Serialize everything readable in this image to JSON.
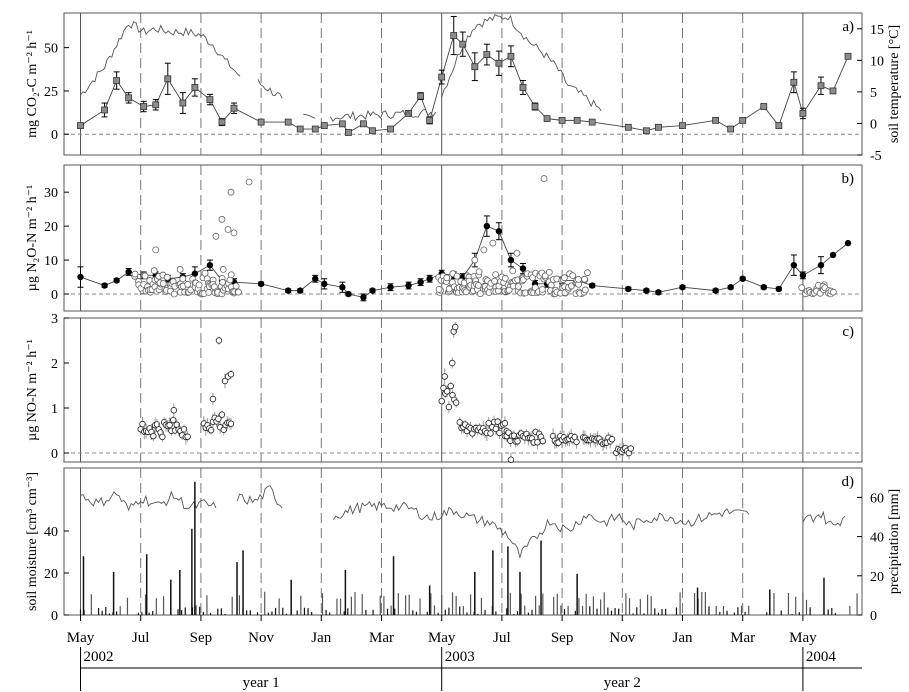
{
  "colors": {
    "axis": "#000000",
    "series_line": "#555555",
    "square_marker": "#8c8c8c",
    "open_marker": "#ffffff",
    "filled_marker": "#000000",
    "grid_dash": "#777777"
  },
  "time_axis": {
    "month_labels": [
      "May",
      "Jul",
      "Sep",
      "Nov",
      "Jan",
      "Mar",
      "May",
      "Jul",
      "Sep",
      "Nov",
      "Jan",
      "Mar",
      "May"
    ],
    "year_labels": [
      "2002",
      "2003",
      "2004"
    ],
    "period_labels": [
      "year 1",
      "year 2"
    ]
  },
  "chart_data": [
    {
      "panel_label": "a)",
      "type": "line",
      "ylabel": "mg CO₂-C m⁻² h⁻¹",
      "ylabel_right": "soil temperature [°C]",
      "ylim": [
        -12,
        70
      ],
      "yticks": [
        0,
        25,
        50
      ],
      "ylim_right": [
        -5,
        17.5
      ],
      "yticks_right": [
        -5,
        0,
        5,
        10,
        15
      ],
      "series": [
        {
          "marker": "square",
          "x": [
            0,
            0.8,
            1.2,
            1.6,
            2.1,
            2.5,
            2.9,
            3.4,
            3.8,
            4.3,
            4.7,
            5.1,
            6,
            6.9,
            7.3,
            7.8,
            8.1,
            8.7,
            8.9,
            9.4,
            9.7,
            10.3,
            10.9,
            11.3,
            11.6,
            12,
            12.4,
            12.7,
            13.1,
            13.5,
            13.9,
            14.3,
            14.7,
            15.1,
            15.5,
            16,
            16.5,
            17,
            18.2,
            18.8,
            19.2,
            20,
            21.1,
            21.6,
            22,
            22.7,
            23.2,
            23.7,
            24,
            24.6,
            25,
            25.5
          ],
          "y": [
            5,
            14,
            31,
            21,
            16,
            17,
            32,
            18,
            27,
            20,
            7,
            15,
            7,
            7,
            3,
            3,
            5,
            6,
            1,
            6,
            2,
            3,
            12,
            22,
            8,
            33,
            57,
            52,
            39,
            46,
            41,
            45,
            27,
            16,
            9,
            8,
            8,
            7,
            4,
            2,
            4,
            5,
            8,
            3,
            8,
            16,
            5,
            30,
            12,
            28,
            25,
            45
          ],
          "err": [
            0,
            4,
            5,
            3,
            3,
            3,
            9,
            6,
            5,
            3,
            2,
            3,
            0,
            0,
            0,
            0,
            0,
            0,
            0,
            0,
            0,
            0,
            0,
            2,
            2,
            4,
            11,
            7,
            8,
            6,
            7,
            6,
            4,
            2,
            0,
            0,
            0,
            0,
            0,
            0,
            0,
            0,
            0,
            0,
            0,
            0,
            0,
            6,
            3,
            5,
            0,
            0
          ]
        },
        {
          "name_hidden": "soil temperature",
          "axis": "right",
          "segments": [
            {
              "x": [
                0,
                0.8,
                1.6,
                2.1,
                2.5,
                3,
                3.5,
                4,
                4.4,
                4.8,
                5.3
              ],
              "y": [
                4.5,
                9,
                16,
                14.5,
                15,
                14.5,
                14.5,
                14,
                12.5,
                10,
                7.5
              ]
            },
            {
              "x": [
                5.9,
                6.7
              ],
              "y": [
                6.5,
                4
              ]
            },
            {
              "x": [
                7.4,
                7.8
              ],
              "y": [
                0.8,
                0.8
              ]
            },
            {
              "x": [
                8.3,
                11.8
              ],
              "y": [
                1,
                1.8
              ]
            },
            {
              "x": [
                12,
                12.7,
                13.1,
                13.6,
                14.2,
                14.9,
                15.4,
                15.8,
                16.2,
                16.8,
                17.3
              ],
              "y": [
                4.5,
                12.5,
                15.5,
                16.5,
                17,
                13,
                11,
                9,
                6,
                4,
                2
              ]
            }
          ]
        }
      ]
    },
    {
      "panel_label": "b)",
      "type": "scatter",
      "ylabel": "µg N₂O-N m⁻² h⁻¹",
      "ylim": [
        -5,
        38
      ],
      "yticks": [
        0,
        10,
        20,
        30
      ],
      "series": [
        {
          "marker": "filled-circle",
          "x": [
            0,
            0.8,
            1.2,
            1.6,
            2.1,
            2.5,
            2.9,
            3.4,
            3.8,
            4.3,
            4.7,
            5.1,
            6,
            6.9,
            7.3,
            7.8,
            8.1,
            8.7,
            8.9,
            9.4,
            9.7,
            10.3,
            10.9,
            11.3,
            11.6,
            12,
            12.4,
            12.7,
            13.1,
            13.5,
            13.9,
            14.3,
            14.7,
            15.1,
            15.5,
            16,
            16.5,
            17,
            18.2,
            18.8,
            19.2,
            20,
            21.1,
            21.6,
            22,
            22.7,
            23.2,
            23.7,
            24,
            24.6,
            25,
            25.5
          ],
          "y": [
            5,
            2.5,
            4,
            6.5,
            5.5,
            5.5,
            4.5,
            5,
            6,
            8.5,
            4,
            3.5,
            3,
            1,
            1,
            4.5,
            3,
            2,
            0,
            -1,
            1,
            2,
            2.5,
            3.5,
            4.5,
            6,
            5.5,
            5,
            10,
            20,
            18.5,
            10,
            7.5,
            3,
            3,
            4,
            4,
            2.5,
            1.5,
            1,
            0.5,
            2,
            1,
            2,
            4.5,
            2,
            1.5,
            8.5,
            5.5,
            8.5,
            11.5,
            15
          ],
          "err": [
            3,
            0.5,
            0.5,
            1,
            1,
            1,
            1,
            1,
            2,
            1.5,
            1,
            1,
            0.5,
            0.5,
            0.5,
            1,
            1.5,
            1.5,
            0.5,
            1,
            0.5,
            1,
            1,
            1,
            1,
            1,
            1,
            1,
            2,
            3,
            2.5,
            2,
            1.5,
            1,
            1,
            1,
            1,
            0.5,
            0.5,
            0.5,
            0.5,
            0.5,
            0.5,
            0.5,
            0.5,
            0.5,
            0.5,
            3,
            1,
            2.5,
            0,
            0
          ]
        },
        {
          "marker": "open-circle",
          "clusters": [
            {
              "x_start": 1.8,
              "x_end": 5.3,
              "y_min": 0,
              "y_max": 8,
              "outliers": [
                [
                  2.5,
                  13
                ],
                [
                  4.5,
                  17
                ],
                [
                  4.7,
                  22
                ],
                [
                  4.9,
                  19
                ],
                [
                  5.0,
                  30
                ],
                [
                  5.1,
                  18
                ],
                [
                  5.6,
                  33
                ]
              ]
            },
            {
              "x_start": 11.9,
              "x_end": 16.8,
              "y_min": 0,
              "y_max": 8,
              "outliers": [
                [
                  13.1,
                  10
                ],
                [
                  13.4,
                  13
                ],
                [
                  13.7,
                  15
                ],
                [
                  14.5,
                  12
                ],
                [
                  15.4,
                  34
                ]
              ]
            },
            {
              "x_start": 24.0,
              "x_end": 25.0,
              "y_min": 0,
              "y_max": 3,
              "outliers": []
            }
          ]
        }
      ]
    },
    {
      "panel_label": "c)",
      "type": "scatter",
      "ylabel": "µg NO-N m⁻² h⁻¹",
      "ylim": [
        -0.2,
        3
      ],
      "yticks": [
        0,
        1,
        2,
        3
      ],
      "series": [
        {
          "marker": "open-circle",
          "segments": [
            {
              "x_start": 2.0,
              "x_end": 3.6,
              "y_base": 0.55,
              "y_amp": 0.2,
              "peaks": [
                [
                  3.1,
                  0.95
                ]
              ]
            },
            {
              "x_start": 4.1,
              "x_end": 5.0,
              "y_base": 0.7,
              "y_amp": 0.25,
              "peaks": [
                [
                  4.4,
                  1.2
                ],
                [
                  4.8,
                  1.6
                ],
                [
                  4.9,
                  1.7
                ],
                [
                  5.0,
                  1.75
                ],
                [
                  4.6,
                  2.5
                ]
              ]
            },
            {
              "x_start": 12.0,
              "x_end": 12.5,
              "y_base": 1.2,
              "y_amp": 0.3,
              "peaks": [
                [
                  12.35,
                  2.0
                ],
                [
                  12.4,
                  2.7
                ],
                [
                  12.45,
                  2.8
                ],
                [
                  12.1,
                  1.7
                ]
              ]
            },
            {
              "x_start": 12.6,
              "x_end": 14.2,
              "y_base": 0.55,
              "y_amp": 0.15,
              "peaks": []
            },
            {
              "x_start": 14.1,
              "x_end": 15.4,
              "y_base": 0.35,
              "y_amp": 0.12,
              "peaks": [
                [
                  14.3,
                  -0.15
                ]
              ]
            },
            {
              "x_start": 15.7,
              "x_end": 16.5,
              "y_base": 0.3,
              "y_amp": 0.08,
              "peaks": []
            },
            {
              "x_start": 16.7,
              "x_end": 17.7,
              "y_base": 0.28,
              "y_amp": 0.08,
              "peaks": []
            },
            {
              "x_start": 17.8,
              "x_end": 18.3,
              "y_base": 0.05,
              "y_amp": 0.06,
              "peaks": []
            }
          ]
        }
      ]
    },
    {
      "panel_label": "d)",
      "type": "line",
      "ylabel": "soil moisture [cm³ cm⁻³]",
      "ylabel_right": "precipitation [mm]",
      "ylim": [
        0,
        70
      ],
      "yticks": [
        0,
        20,
        40
      ],
      "ylim_right": [
        0,
        75
      ],
      "yticks_right": [
        0,
        20,
        40,
        60
      ],
      "series": [
        {
          "name_hidden": "soil moisture",
          "segments": [
            {
              "x": [
                0,
                0.6,
                1.2,
                1.6,
                2.0,
                2.6,
                3.1,
                3.6,
                4.1,
                4.5
              ],
              "y": [
                57,
                53,
                58,
                50,
                56,
                52,
                57,
                51,
                53,
                51
              ]
            },
            {
              "x": [
                5.2,
                5.8,
                6.3,
                6.7
              ],
              "y": [
                56,
                54,
                60,
                51
              ]
            },
            {
              "x": [
                8.4,
                9.2,
                10.0,
                10.9,
                11.6,
                12.4,
                13.0,
                13.6,
                14.2,
                14.6,
                15.0,
                15.6,
                16.2,
                16.8,
                17.4,
                17.9,
                18.3,
                18.8,
                19.5,
                20.2,
                20.8,
                21.4,
                22.2
              ],
              "y": [
                47,
                51,
                52,
                51,
                46,
                50,
                46,
                44,
                38,
                28,
                35,
                45,
                40,
                48,
                44,
                47,
                42,
                46,
                47,
                44,
                47,
                49,
                48
              ]
            },
            {
              "x": [
                24.0,
                24.6,
                25.0,
                25.4
              ],
              "y": [
                45,
                48,
                42,
                47
              ]
            }
          ]
        },
        {
          "name_hidden": "precipitation",
          "axis": "right",
          "type": "bar",
          "big_events": [
            [
              0.1,
              30
            ],
            [
              1.1,
              22
            ],
            [
              2.2,
              31
            ],
            [
              3.0,
              18
            ],
            [
              3.3,
              23
            ],
            [
              3.7,
              44
            ],
            [
              3.8,
              68
            ],
            [
              5.2,
              27
            ],
            [
              5.4,
              33
            ],
            [
              7.0,
              18
            ],
            [
              8.8,
              23
            ],
            [
              10.4,
              30
            ],
            [
              11.6,
              15
            ],
            [
              13.1,
              22
            ],
            [
              13.7,
              33
            ],
            [
              14.2,
              35
            ],
            [
              14.6,
              22
            ],
            [
              15.3,
              38
            ],
            [
              16.5,
              21
            ],
            [
              20.5,
              14
            ],
            [
              22.9,
              13
            ],
            [
              24.7,
              19
            ]
          ]
        }
      ]
    }
  ]
}
